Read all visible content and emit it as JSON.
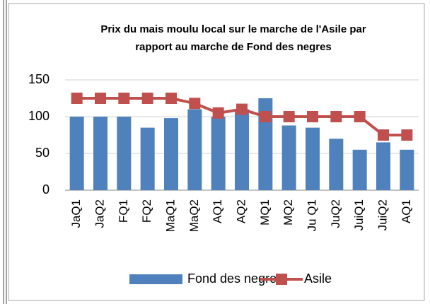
{
  "chart_data": {
    "type": "bar-line",
    "title": [
      "Prix du mais moulu local sur le marche de l'Asile par",
      "rapport au marche de Fond des negres"
    ],
    "categories": [
      "JaQ1",
      "JaQ2",
      "FQ1",
      "FQ2",
      "MaQ1",
      "MaQ2",
      "AQ1",
      "AQ2",
      "MQ1",
      "MQ2",
      "Ju Q1",
      "JuQ2",
      "JuiQ1",
      "JuiQ2",
      "AQ1"
    ],
    "series": [
      {
        "name": "Fond des negres",
        "type": "bar",
        "color": "#4f81bd",
        "values": [
          100,
          100,
          100,
          85,
          98,
          110,
          100,
          110,
          125,
          88,
          85,
          70,
          55,
          65,
          55
        ]
      },
      {
        "name": "Asile",
        "type": "line",
        "color": "#c0504d",
        "values": [
          125,
          125,
          125,
          125,
          125,
          118,
          105,
          110,
          100,
          100,
          100,
          100,
          100,
          75,
          75
        ]
      }
    ],
    "ylim": [
      0,
      150
    ],
    "yticks": [
      0,
      50,
      100,
      150
    ],
    "grid": true,
    "legend": "bottom"
  }
}
